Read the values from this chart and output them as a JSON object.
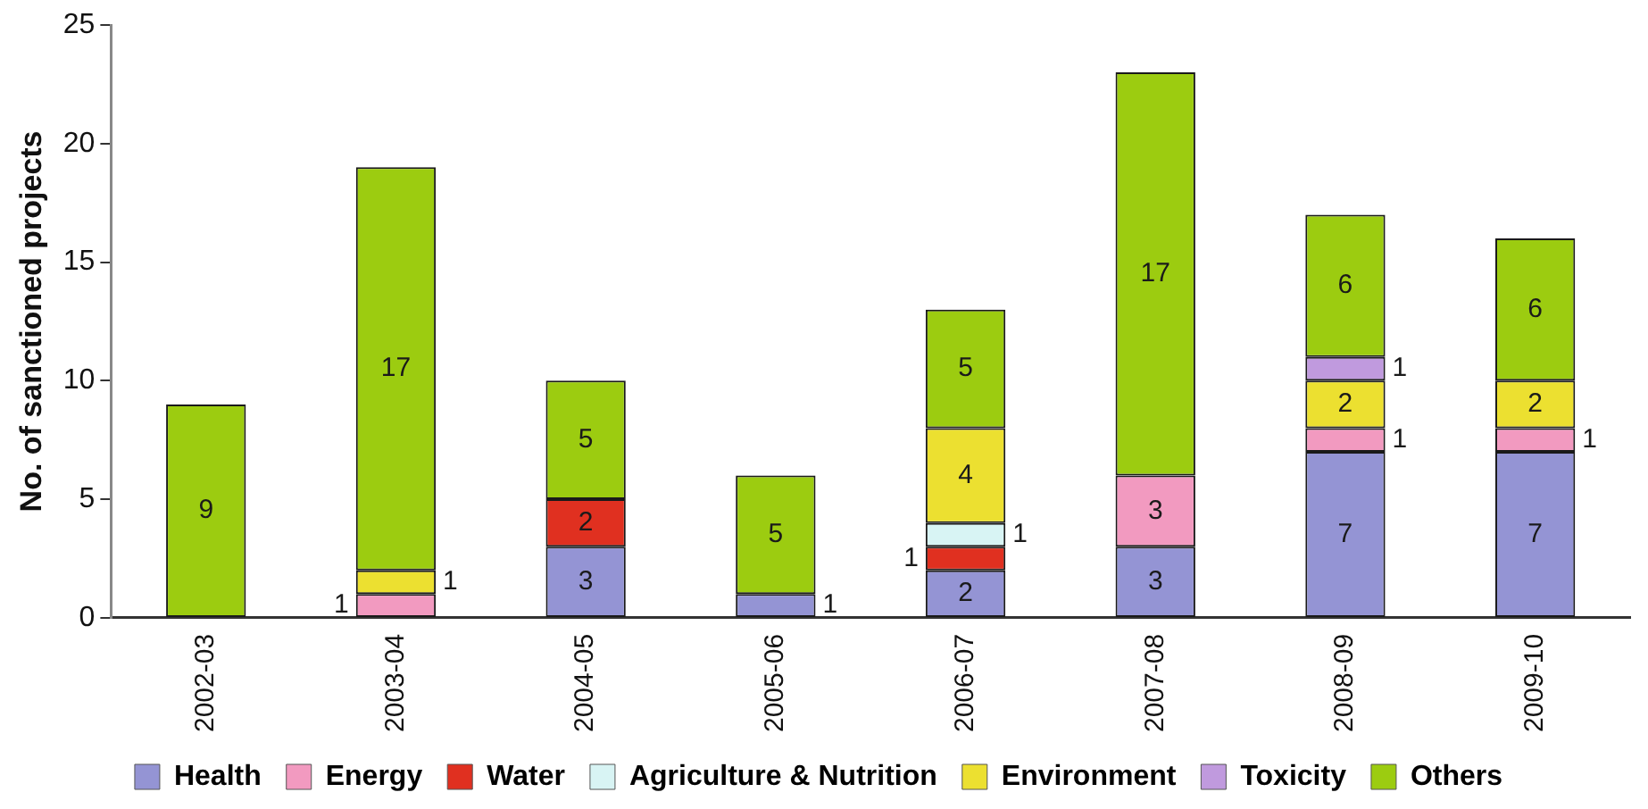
{
  "chart_data": {
    "type": "bar",
    "stacked": true,
    "ylabel": "No. of sanctioned projects",
    "categories": [
      "2002-03",
      "2003-04",
      "2004-05",
      "2005-06",
      "2006-07",
      "2007-08",
      "2008-09",
      "2009-10"
    ],
    "series": [
      {
        "name": "Health",
        "color": "#9494d4",
        "values": [
          null,
          null,
          3,
          1,
          2,
          3,
          7,
          7
        ]
      },
      {
        "name": "Energy",
        "color": "#f29ac0",
        "values": [
          null,
          1,
          null,
          null,
          null,
          3,
          1,
          1
        ]
      },
      {
        "name": "Water",
        "color": "#e03020",
        "values": [
          null,
          null,
          2,
          null,
          1,
          null,
          null,
          null
        ]
      },
      {
        "name": "Agriculture & Nutrition",
        "color": "#d8f4f4",
        "values": [
          null,
          null,
          null,
          null,
          1,
          null,
          null,
          null
        ]
      },
      {
        "name": "Environment",
        "color": "#ece030",
        "values": [
          null,
          1,
          null,
          null,
          4,
          null,
          2,
          2
        ]
      },
      {
        "name": "Toxicity",
        "color": "#c09ade",
        "values": [
          null,
          null,
          null,
          null,
          null,
          null,
          1,
          null
        ]
      },
      {
        "name": "Others",
        "color": "#9ccc10",
        "values": [
          9,
          17,
          5,
          5,
          5,
          17,
          6,
          6
        ]
      }
    ],
    "ylim": [
      0,
      25
    ],
    "yticks": [
      0,
      5,
      10,
      15,
      20,
      25
    ],
    "grid": false,
    "legend": "bottom",
    "data_labels": true
  }
}
